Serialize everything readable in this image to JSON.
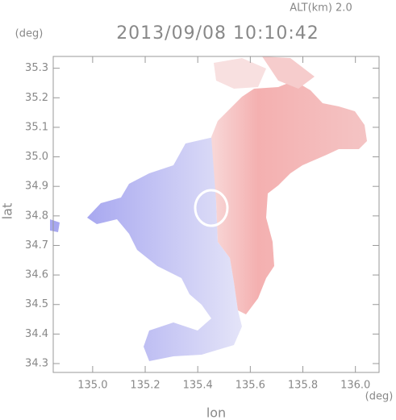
{
  "chart_data": {
    "type": "map",
    "title": "2013/09/08 10:10:42",
    "annotation": "ALT(km) 2.0",
    "x_label": "lon",
    "x_unit": "(deg)",
    "y_label": "lat",
    "y_unit": "(deg)",
    "xlim": [
      134.85,
      136.09
    ],
    "xticks": [
      {
        "value": 135,
        "label": "135.0"
      },
      135.2,
      135.4,
      135.6,
      135.8,
      {
        "value": 136,
        "label": "136.0"
      }
    ],
    "ylim": [
      34.27,
      35.34
    ],
    "yticks": [
      34.3,
      34.4,
      34.5,
      34.6,
      34.7,
      34.8,
      34.9,
      {
        "value": 35,
        "label": "35.0"
      },
      35.1,
      35.2,
      35.3
    ]
  }
}
